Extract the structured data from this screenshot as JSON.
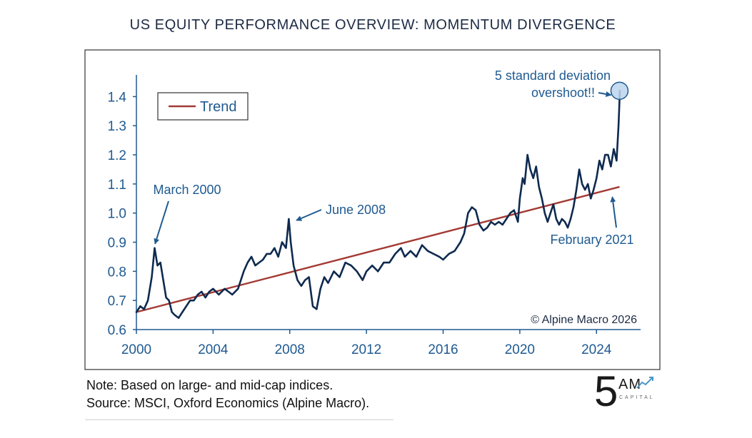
{
  "title": "US EQUITY PERFORMANCE OVERVIEW: MOMENTUM DIVERGENCE",
  "notes": {
    "line1": "Note: Based on large- and mid-cap indices.",
    "line2": "Source: MSCI, Oxford Economics (Alpine Macro)."
  },
  "logo": {
    "main": "5",
    "letters": "AM",
    "sub": "CAPITAL"
  },
  "colors": {
    "series": "#0e2a4f",
    "trend": "#a33a34",
    "text": "#1f5a91",
    "frame": "#333333",
    "marker_fill": "#bcd5ec"
  },
  "chart_data": {
    "type": "line",
    "xlabel": "",
    "ylabel": "",
    "xlim": [
      2000.0,
      2026.3
    ],
    "ylim": [
      0.6,
      1.45
    ],
    "xticks": [
      2000,
      2004,
      2008,
      2012,
      2016,
      2020,
      2024
    ],
    "xtick_labels": [
      "2000",
      "2004",
      "2008",
      "2012",
      "2016",
      "2020",
      "2024"
    ],
    "yticks": [
      0.6,
      0.7,
      0.8,
      0.9,
      1.0,
      1.1,
      1.2,
      1.3,
      1.4
    ],
    "ytick_labels": [
      "0.6",
      "0.7",
      "0.8",
      "0.9",
      "1.0",
      "1.1",
      "1.2",
      "1.3",
      "1.4"
    ],
    "legend": {
      "position": "top-left",
      "entries": [
        "Trend"
      ]
    },
    "grid": false,
    "series": [
      {
        "role": "index",
        "x": [
          2000.0,
          2000.2,
          2000.4,
          2000.6,
          2000.8,
          2000.95,
          2001.1,
          2001.25,
          2001.4,
          2001.55,
          2001.7,
          2001.85,
          2002.0,
          2002.2,
          2002.4,
          2002.6,
          2002.8,
          2003.0,
          2003.2,
          2003.4,
          2003.6,
          2003.8,
          2004.0,
          2004.3,
          2004.6,
          2004.8,
          2005.0,
          2005.3,
          2005.6,
          2005.8,
          2006.0,
          2006.2,
          2006.4,
          2006.6,
          2006.8,
          2007.0,
          2007.2,
          2007.4,
          2007.6,
          2007.8,
          2007.95,
          2008.05,
          2008.2,
          2008.4,
          2008.6,
          2008.8,
          2009.0,
          2009.2,
          2009.4,
          2009.6,
          2009.8,
          2010.0,
          2010.3,
          2010.6,
          2010.9,
          2011.2,
          2011.5,
          2011.8,
          2012.0,
          2012.3,
          2012.6,
          2012.9,
          2013.2,
          2013.5,
          2013.8,
          2014.0,
          2014.3,
          2014.6,
          2014.9,
          2015.2,
          2015.5,
          2015.8,
          2016.0,
          2016.3,
          2016.6,
          2016.9,
          2017.1,
          2017.3,
          2017.5,
          2017.7,
          2017.9,
          2018.1,
          2018.3,
          2018.5,
          2018.7,
          2018.9,
          2019.1,
          2019.3,
          2019.5,
          2019.7,
          2019.9,
          2020.0,
          2020.15,
          2020.25,
          2020.4,
          2020.55,
          2020.7,
          2020.85,
          2021.0,
          2021.15,
          2021.3,
          2021.45,
          2021.6,
          2021.75,
          2021.9,
          2022.05,
          2022.2,
          2022.35,
          2022.5,
          2022.65,
          2022.8,
          2022.95,
          2023.1,
          2023.25,
          2023.4,
          2023.55,
          2023.7,
          2023.85,
          2024.0,
          2024.15,
          2024.3,
          2024.45,
          2024.6,
          2024.75,
          2024.9,
          2025.05,
          2025.15,
          2025.22
        ],
        "values": [
          0.66,
          0.68,
          0.67,
          0.7,
          0.78,
          0.88,
          0.82,
          0.83,
          0.77,
          0.71,
          0.7,
          0.66,
          0.65,
          0.64,
          0.66,
          0.68,
          0.7,
          0.7,
          0.72,
          0.73,
          0.71,
          0.73,
          0.74,
          0.72,
          0.74,
          0.73,
          0.72,
          0.74,
          0.8,
          0.83,
          0.85,
          0.82,
          0.83,
          0.84,
          0.86,
          0.86,
          0.88,
          0.85,
          0.9,
          0.88,
          0.98,
          0.9,
          0.82,
          0.77,
          0.75,
          0.77,
          0.78,
          0.68,
          0.67,
          0.74,
          0.78,
          0.76,
          0.8,
          0.78,
          0.83,
          0.82,
          0.8,
          0.77,
          0.8,
          0.82,
          0.8,
          0.83,
          0.83,
          0.86,
          0.88,
          0.85,
          0.87,
          0.85,
          0.89,
          0.87,
          0.86,
          0.85,
          0.84,
          0.86,
          0.87,
          0.9,
          0.93,
          1.0,
          1.02,
          1.01,
          0.96,
          0.94,
          0.95,
          0.97,
          0.96,
          0.97,
          0.96,
          0.98,
          1.0,
          1.01,
          0.97,
          1.05,
          1.12,
          1.1,
          1.2,
          1.15,
          1.12,
          1.16,
          1.09,
          1.05,
          1.0,
          0.97,
          1.0,
          1.03,
          0.98,
          0.96,
          0.98,
          0.97,
          0.95,
          0.98,
          1.02,
          1.08,
          1.15,
          1.1,
          1.08,
          1.1,
          1.05,
          1.08,
          1.12,
          1.18,
          1.15,
          1.2,
          1.2,
          1.16,
          1.22,
          1.18,
          1.3,
          1.42
        ]
      },
      {
        "role": "trend",
        "name": "Trend",
        "x": [
          2000.0,
          2025.2
        ],
        "values": [
          0.66,
          1.09
        ]
      }
    ],
    "annotations": [
      {
        "text": "March 2000",
        "x": 2000.9,
        "y": 0.88
      },
      {
        "text": "June 2008",
        "x": 2008.05,
        "y": 0.98
      },
      {
        "text": "February 2021",
        "x": 2024.9,
        "y": 1.07
      },
      {
        "text": "5 standard deviation",
        "x": 2025.2,
        "y": 1.42
      },
      {
        "text": "overshoot!!",
        "x": 2025.2,
        "y": 1.42
      }
    ],
    "source_note": "© Alpine Macro 2026"
  }
}
